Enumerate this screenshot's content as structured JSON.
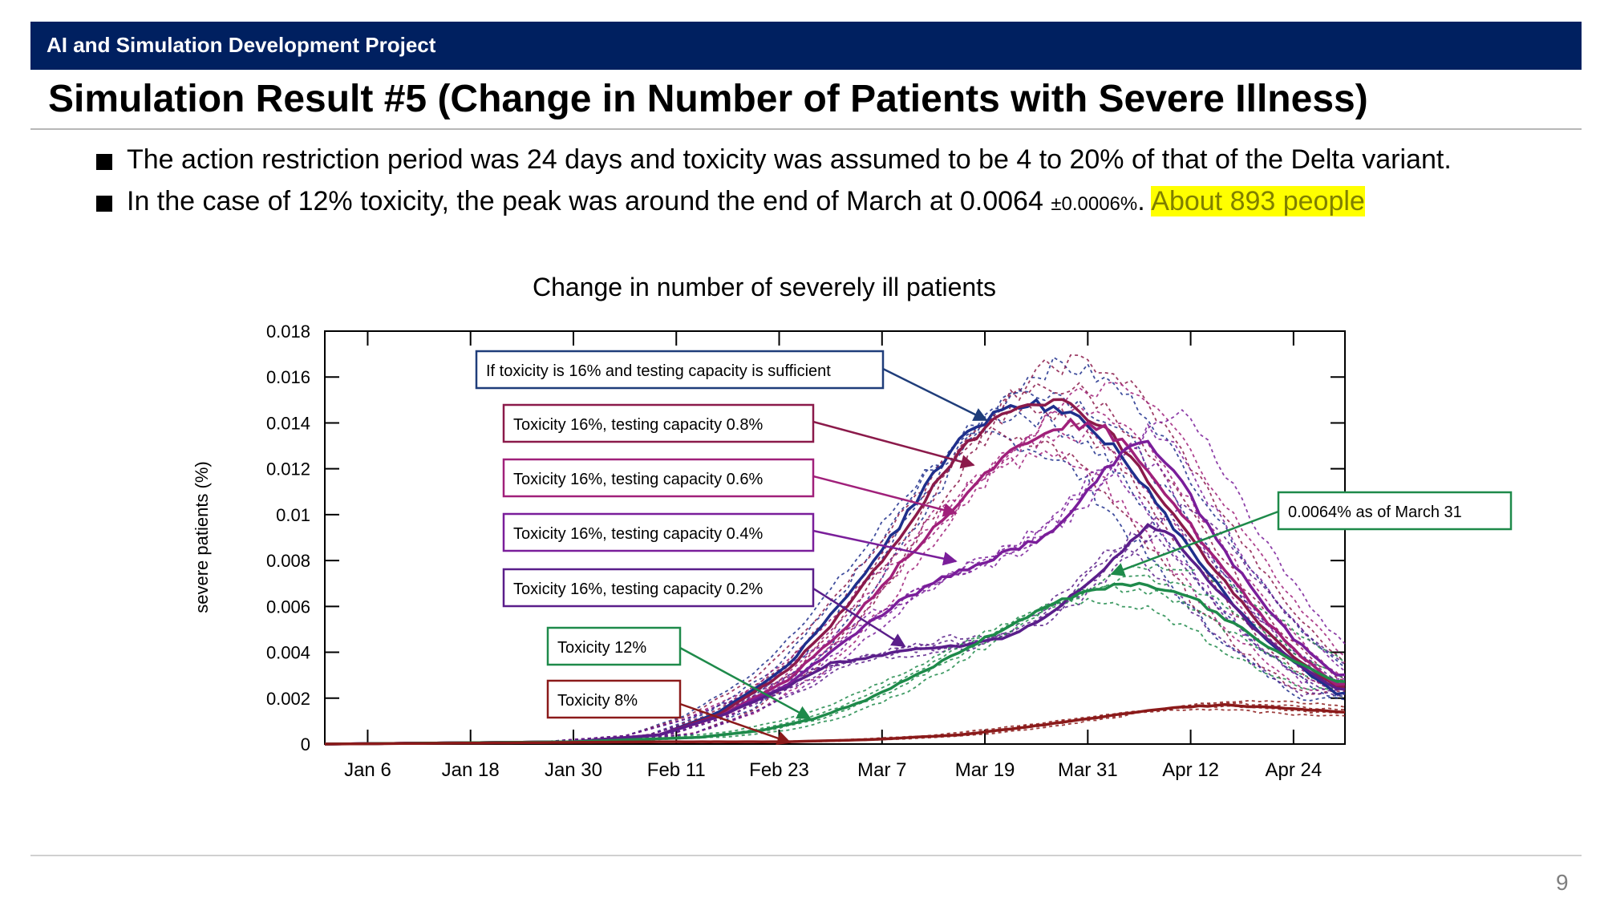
{
  "header": {
    "project": "AI and Simulation Development Project",
    "title": "Simulation Result #5 (Change in Number of Patients with Severe Illness)"
  },
  "bullets": [
    {
      "text": "The action restriction period was 24 days and toxicity was assumed to be 4 to 20% of that of the Delta variant."
    },
    {
      "text_a": "In the case of 12% toxicity, the peak was around the end of March at 0.0064 ",
      "text_small": "±0.0006%",
      "text_b": ". ",
      "highlight": "About 893 people"
    }
  ],
  "page_number": "9",
  "colors": {
    "header_bar": "#002060",
    "highlight": "#ffff00"
  },
  "chart_data": {
    "type": "line",
    "title": "Change in number of severely ill patients",
    "ylabel": "severe patients (%)",
    "xlabel": "",
    "x_ticks": [
      "Jan 6",
      "Jan 18",
      "Jan 30",
      "Feb 11",
      "Feb 23",
      "Mar 7",
      "Mar 19",
      "Mar 31",
      "Apr 12",
      "Apr 24"
    ],
    "y_ticks": [
      "0",
      "0.002",
      "0.004",
      "0.006",
      "0.008",
      "0.01",
      "0.012",
      "0.014",
      "0.016",
      "0.018"
    ],
    "ylim": [
      0,
      0.018
    ],
    "x_unit": "days since Jan 1",
    "xlim": [
      1,
      120
    ],
    "grid": false,
    "series": [
      {
        "name": "If toxicity is 16% and testing capacity is sufficient",
        "color": "#1f2f8c",
        "points": [
          [
            1,
            0
          ],
          [
            30,
            0.0001
          ],
          [
            40,
            0.0004
          ],
          [
            47,
            0.0014
          ],
          [
            55,
            0.0034
          ],
          [
            62,
            0.0065
          ],
          [
            68,
            0.0095
          ],
          [
            72,
            0.0118
          ],
          [
            76,
            0.0136
          ],
          [
            80,
            0.0146
          ],
          [
            83,
            0.0149
          ],
          [
            86,
            0.0146
          ],
          [
            89,
            0.0141
          ],
          [
            93,
            0.013
          ],
          [
            97,
            0.011
          ],
          [
            101,
            0.009
          ],
          [
            106,
            0.0065
          ],
          [
            111,
            0.0045
          ],
          [
            116,
            0.003
          ],
          [
            119,
            0.0022
          ]
        ]
      },
      {
        "name": "Toxicity 16%, testing capacity 0.8%",
        "color": "#8b1a4a",
        "points": [
          [
            1,
            0
          ],
          [
            30,
            0.0001
          ],
          [
            40,
            0.0004
          ],
          [
            47,
            0.0013
          ],
          [
            55,
            0.0032
          ],
          [
            62,
            0.006
          ],
          [
            68,
            0.009
          ],
          [
            73,
            0.0117
          ],
          [
            77,
            0.0135
          ],
          [
            81,
            0.0147
          ],
          [
            84,
            0.015
          ],
          [
            88,
            0.0148
          ],
          [
            92,
            0.0138
          ],
          [
            96,
            0.012
          ],
          [
            100,
            0.01
          ],
          [
            105,
            0.0075
          ],
          [
            110,
            0.0052
          ],
          [
            115,
            0.0035
          ],
          [
            119,
            0.0025
          ]
        ]
      },
      {
        "name": "Toxicity 16%, testing capacity 0.6%",
        "color": "#a0207a",
        "points": [
          [
            1,
            0
          ],
          [
            30,
            0.0001
          ],
          [
            40,
            0.0004
          ],
          [
            47,
            0.0012
          ],
          [
            55,
            0.0028
          ],
          [
            62,
            0.0052
          ],
          [
            68,
            0.0078
          ],
          [
            73,
            0.0098
          ],
          [
            77,
            0.0115
          ],
          [
            81,
            0.0127
          ],
          [
            85,
            0.0137
          ],
          [
            88,
            0.014
          ],
          [
            92,
            0.0137
          ],
          [
            96,
            0.0125
          ],
          [
            100,
            0.0105
          ],
          [
            105,
            0.008
          ],
          [
            110,
            0.0057
          ],
          [
            115,
            0.0038
          ],
          [
            119,
            0.0026
          ]
        ]
      },
      {
        "name": "Toxicity 16%, testing capacity 0.4%",
        "color": "#7a1e9a",
        "points": [
          [
            1,
            0
          ],
          [
            30,
            0.0001
          ],
          [
            40,
            0.0004
          ],
          [
            47,
            0.0012
          ],
          [
            55,
            0.0026
          ],
          [
            62,
            0.0046
          ],
          [
            68,
            0.0062
          ],
          [
            73,
            0.0072
          ],
          [
            78,
            0.008
          ],
          [
            82,
            0.0086
          ],
          [
            86,
            0.0092
          ],
          [
            90,
            0.011
          ],
          [
            94,
            0.0128
          ],
          [
            97,
            0.0132
          ],
          [
            100,
            0.012
          ],
          [
            104,
            0.0095
          ],
          [
            109,
            0.0068
          ],
          [
            114,
            0.0046
          ],
          [
            119,
            0.003
          ]
        ]
      },
      {
        "name": "Toxicity 16%, testing capacity 0.2%",
        "color": "#5a1e8a",
        "points": [
          [
            1,
            0
          ],
          [
            30,
            0.0001
          ],
          [
            40,
            0.0004
          ],
          [
            47,
            0.0012
          ],
          [
            55,
            0.0025
          ],
          [
            60,
            0.0035
          ],
          [
            65,
            0.0038
          ],
          [
            70,
            0.0042
          ],
          [
            75,
            0.0043
          ],
          [
            80,
            0.0046
          ],
          [
            85,
            0.0055
          ],
          [
            90,
            0.007
          ],
          [
            94,
            0.0085
          ],
          [
            97,
            0.0095
          ],
          [
            100,
            0.009
          ],
          [
            104,
            0.0072
          ],
          [
            109,
            0.0052
          ],
          [
            114,
            0.0036
          ],
          [
            119,
            0.0024
          ]
        ]
      },
      {
        "name": "Toxicity 12%",
        "color": "#1e8a4a",
        "points": [
          [
            1,
            0
          ],
          [
            30,
            0.0001
          ],
          [
            45,
            0.0003
          ],
          [
            52,
            0.0006
          ],
          [
            58,
            0.0011
          ],
          [
            64,
            0.0019
          ],
          [
            70,
            0.003
          ],
          [
            76,
            0.0042
          ],
          [
            82,
            0.0054
          ],
          [
            87,
            0.0063
          ],
          [
            91,
            0.0068
          ],
          [
            95,
            0.007
          ],
          [
            99,
            0.0068
          ],
          [
            103,
            0.0062
          ],
          [
            108,
            0.005
          ],
          [
            113,
            0.0038
          ],
          [
            119,
            0.0027
          ]
        ]
      },
      {
        "name": "Toxicity 8%",
        "color": "#8b1a1a",
        "points": [
          [
            1,
            0
          ],
          [
            40,
            0.0001
          ],
          [
            55,
            0.0001
          ],
          [
            65,
            0.0002
          ],
          [
            75,
            0.0004
          ],
          [
            82,
            0.0007
          ],
          [
            88,
            0.001
          ],
          [
            94,
            0.0013
          ],
          [
            100,
            0.0016
          ],
          [
            106,
            0.0017
          ],
          [
            112,
            0.0016
          ],
          [
            119,
            0.0014
          ]
        ]
      }
    ],
    "annotations": [
      {
        "text": "If toxicity is 16% and testing capacity is sufficient",
        "color": "#1f3d7a"
      },
      {
        "text": "Toxicity 16%, testing capacity 0.8%",
        "color": "#8b1a4a"
      },
      {
        "text": "Toxicity 16%, testing capacity 0.6%",
        "color": "#a0207a"
      },
      {
        "text": "Toxicity 16%, testing capacity 0.4%",
        "color": "#7a1e9a"
      },
      {
        "text": "Toxicity 16%, testing capacity 0.2%",
        "color": "#5a1e8a"
      },
      {
        "text": "Toxicity 12%",
        "color": "#1e8a4a"
      },
      {
        "text": "Toxicity 8%",
        "color": "#8b1a1a"
      },
      {
        "text": "0.0064% as of March 31",
        "color": "#1e8a4a"
      }
    ]
  }
}
